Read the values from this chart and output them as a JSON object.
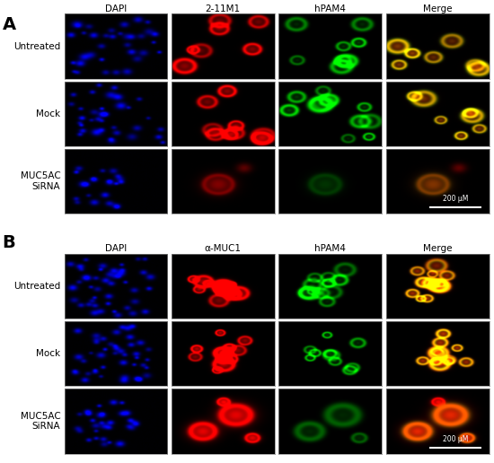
{
  "panel_A_label": "A",
  "panel_B_label": "B",
  "panel_A_col_headers": [
    "DAPI",
    "2-11M1",
    "hPAM4",
    "Merge"
  ],
  "panel_B_col_headers": [
    "DAPI",
    "α-MUC1",
    "hPAM4",
    "Merge"
  ],
  "row_labels": [
    "Untreated",
    "Mock",
    "MUC5AC\nSiRNA"
  ],
  "scale_bar_text": "200 μM",
  "background_color": "#ffffff",
  "fig_width": 5.5,
  "fig_height": 5.16,
  "header_fontsize": 7.5,
  "label_fontsize": 7.5,
  "panel_label_fontsize": 14,
  "scalebar_fontsize": 5.5
}
